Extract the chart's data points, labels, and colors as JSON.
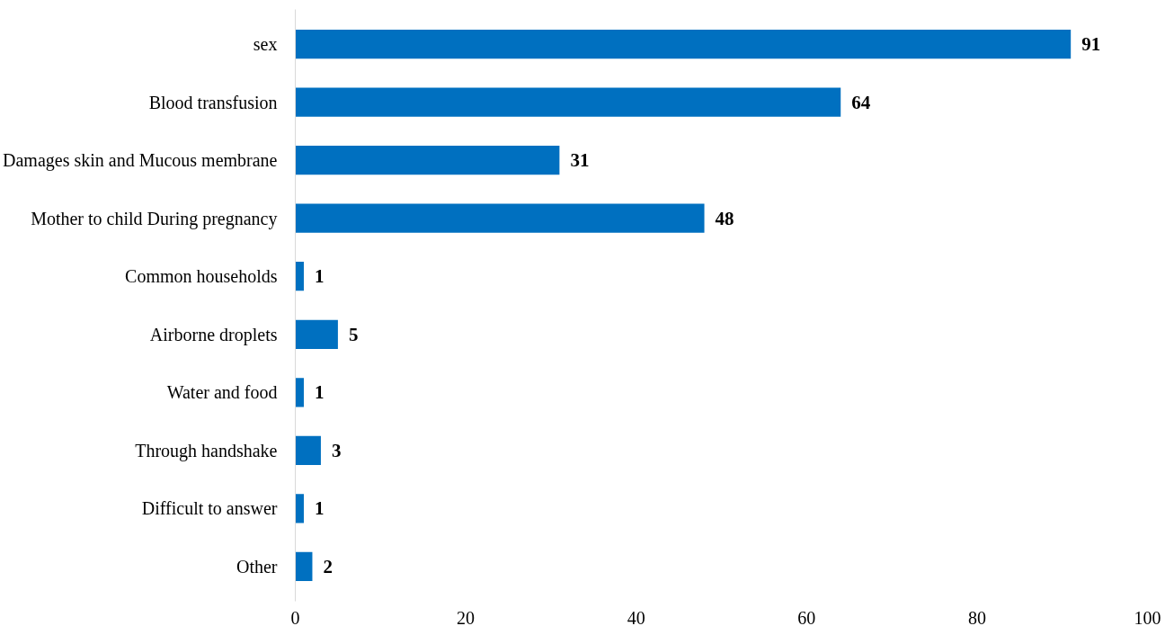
{
  "chart_data": {
    "type": "bar",
    "orientation": "horizontal",
    "categories": [
      "sex",
      "Blood transfusion",
      "Damages skin and Mucous membrane",
      "Mother to child During pregnancy",
      "Common households",
      "Airborne droplets",
      "Water and food",
      "Through handshake",
      "Difficult to answer",
      "Other"
    ],
    "values": [
      91,
      64,
      31,
      48,
      1,
      5,
      1,
      3,
      1,
      2
    ],
    "color": "#0070c0",
    "xlim": [
      0,
      100
    ],
    "xticks": [
      0,
      20,
      40,
      60,
      80,
      100
    ],
    "data_labels": true
  }
}
